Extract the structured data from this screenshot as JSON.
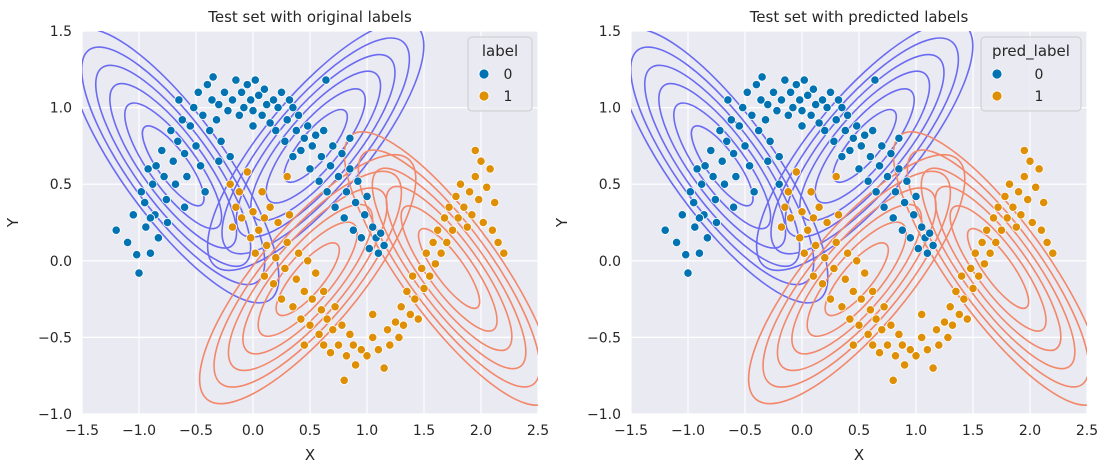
{
  "colors": {
    "class0": "#0173b2",
    "class1": "#de8f05",
    "contour0": "#6b6bf2",
    "contour1": "#f2876a",
    "axes_bg": "#eaeaf2",
    "grid": "#ffffff"
  },
  "chart_data": [
    {
      "type": "scatter",
      "title": "Test set with original labels",
      "xlabel": "X",
      "ylabel": "Y",
      "xlim": [
        -1.5,
        2.5
      ],
      "ylim": [
        -1.0,
        1.5
      ],
      "xticks": [
        "−1.5",
        "−1.0",
        "−0.5",
        "0.0",
        "0.5",
        "1.0",
        "1.5",
        "2.0",
        "2.5"
      ],
      "yticks": [
        "−1.0",
        "−0.5",
        "0.0",
        "0.5",
        "1.0",
        "1.5"
      ],
      "grid": true,
      "legend": {
        "title": "label",
        "placement": "top-right",
        "entries": [
          "0",
          "1"
        ]
      }
    },
    {
      "type": "scatter",
      "title": "Test set with predicted labels",
      "xlabel": "X",
      "ylabel": "Y",
      "xlim": [
        -1.5,
        2.5
      ],
      "ylim": [
        -1.0,
        1.5
      ],
      "xticks": [
        "−1.5",
        "−1.0",
        "−0.5",
        "0.0",
        "0.5",
        "1.0",
        "1.5",
        "2.0",
        "2.5"
      ],
      "yticks": [
        "−1.0",
        "−0.5",
        "0.0",
        "0.5",
        "1.0",
        "1.5"
      ],
      "grid": true,
      "legend": {
        "title": "pred_label",
        "placement": "top-right",
        "entries": [
          "0",
          "1"
        ]
      }
    }
  ],
  "series": [
    {
      "label": "0",
      "points": [
        [
          -1.2,
          0.2
        ],
        [
          -1.1,
          0.12
        ],
        [
          -1.05,
          0.3
        ],
        [
          -1.02,
          0.04
        ],
        [
          -1.0,
          -0.08
        ],
        [
          -0.98,
          0.45
        ],
        [
          -0.95,
          0.38
        ],
        [
          -0.94,
          0.22
        ],
        [
          -0.92,
          0.6
        ],
        [
          -0.9,
          0.05
        ],
        [
          -0.88,
          0.5
        ],
        [
          -0.86,
          0.3
        ],
        [
          -0.85,
          0.62
        ],
        [
          -0.83,
          0.15
        ],
        [
          -0.8,
          0.72
        ],
        [
          -0.78,
          0.55
        ],
        [
          -0.76,
          0.4
        ],
        [
          -0.75,
          0.25
        ],
        [
          -0.72,
          0.85
        ],
        [
          -0.7,
          0.65
        ],
        [
          -0.68,
          0.5
        ],
        [
          -0.66,
          0.78
        ],
        [
          -0.65,
          1.05
        ],
        [
          -0.62,
          0.92
        ],
        [
          -0.6,
          0.7
        ],
        [
          -0.58,
          0.55
        ],
        [
          -0.55,
          0.88
        ],
        [
          -0.52,
          1.0
        ],
        [
          -0.5,
          0.75
        ],
        [
          -0.48,
          1.1
        ],
        [
          -0.46,
          0.62
        ],
        [
          -0.44,
          0.95
        ],
        [
          -0.42,
          0.45
        ],
        [
          -0.4,
          1.15
        ],
        [
          -0.38,
          0.85
        ],
        [
          -0.36,
          1.05
        ],
        [
          -0.35,
          1.2
        ],
        [
          -0.32,
          0.92
        ],
        [
          -0.3,
          1.02
        ],
        [
          -0.28,
          0.78
        ],
        [
          -0.25,
          1.1
        ],
        [
          -0.22,
          0.98
        ],
        [
          -0.2,
          0.68
        ],
        [
          -0.18,
          1.05
        ],
        [
          -0.15,
          1.18
        ],
        [
          -0.12,
          0.95
        ],
        [
          -0.1,
          1.1
        ],
        [
          -0.08,
          1.0
        ],
        [
          -0.05,
          1.15
        ],
        [
          -0.02,
          1.05
        ],
        [
          0.0,
          0.98
        ],
        [
          0.02,
          1.18
        ],
        [
          0.05,
          1.08
        ],
        [
          0.08,
          0.95
        ],
        [
          0.1,
          1.12
        ],
        [
          0.12,
          1.02
        ],
        [
          0.15,
          0.9
        ],
        [
          0.18,
          1.05
        ],
        [
          0.2,
          0.85
        ],
        [
          0.22,
          1.0
        ],
        [
          0.25,
          1.1
        ],
        [
          0.28,
          0.78
        ],
        [
          0.3,
          0.92
        ],
        [
          0.32,
          1.05
        ],
        [
          0.35,
          0.68
        ],
        [
          0.38,
          0.85
        ],
        [
          0.4,
          0.95
        ],
        [
          0.42,
          0.72
        ],
        [
          0.45,
          0.8
        ],
        [
          0.48,
          0.88
        ],
        [
          0.5,
          0.6
        ],
        [
          0.52,
          0.75
        ],
        [
          0.55,
          0.82
        ],
        [
          0.58,
          0.52
        ],
        [
          0.6,
          0.68
        ],
        [
          0.62,
          0.85
        ],
        [
          0.64,
          1.18
        ],
        [
          0.65,
          0.45
        ],
        [
          0.68,
          0.62
        ],
        [
          0.7,
          0.75
        ],
        [
          0.72,
          0.35
        ],
        [
          0.75,
          0.55
        ],
        [
          0.78,
          0.7
        ],
        [
          0.8,
          0.28
        ],
        [
          0.82,
          0.45
        ],
        [
          0.85,
          0.6
        ],
        [
          0.88,
          0.2
        ],
        [
          0.9,
          0.38
        ],
        [
          0.92,
          0.52
        ],
        [
          0.95,
          0.15
        ],
        [
          0.98,
          0.3
        ],
        [
          1.0,
          0.42
        ],
        [
          1.02,
          0.08
        ],
        [
          1.05,
          0.22
        ],
        [
          1.08,
          0.15
        ],
        [
          1.1,
          0.05
        ],
        [
          1.12,
          0.18
        ],
        [
          1.15,
          0.1
        ],
        [
          0.85,
          0.8
        ],
        [
          0.35,
          1.0
        ],
        [
          -0.6,
          0.35
        ],
        [
          -0.9,
          0.28
        ],
        [
          -0.3,
          0.65
        ],
        [
          0.0,
          0.88
        ]
      ]
    },
    {
      "label": "1",
      "points": [
        [
          -0.2,
          0.5
        ],
        [
          -0.18,
          0.22
        ],
        [
          -0.15,
          0.35
        ],
        [
          -0.12,
          0.45
        ],
        [
          -0.1,
          0.28
        ],
        [
          -0.05,
          0.58
        ],
        [
          -0.02,
          0.15
        ],
        [
          0.0,
          0.32
        ],
        [
          0.02,
          0.05
        ],
        [
          0.05,
          0.2
        ],
        [
          0.08,
          0.45
        ],
        [
          0.1,
          -0.1
        ],
        [
          0.12,
          0.1
        ],
        [
          0.15,
          0.35
        ],
        [
          0.18,
          -0.15
        ],
        [
          0.2,
          0.02
        ],
        [
          0.22,
          0.25
        ],
        [
          0.25,
          -0.25
        ],
        [
          0.28,
          -0.05
        ],
        [
          0.3,
          0.12
        ],
        [
          0.32,
          0.3
        ],
        [
          0.35,
          -0.3
        ],
        [
          0.38,
          -0.12
        ],
        [
          0.4,
          0.05
        ],
        [
          0.42,
          -0.38
        ],
        [
          0.45,
          -0.2
        ],
        [
          0.48,
          0.0
        ],
        [
          0.5,
          -0.42
        ],
        [
          0.52,
          -0.25
        ],
        [
          0.55,
          -0.08
        ],
        [
          0.58,
          -0.48
        ],
        [
          0.6,
          -0.32
        ],
        [
          0.62,
          -0.55
        ],
        [
          0.65,
          -0.38
        ],
        [
          0.68,
          -0.6
        ],
        [
          0.7,
          -0.45
        ],
        [
          0.72,
          -0.3
        ],
        [
          0.75,
          -0.55
        ],
        [
          0.78,
          -0.42
        ],
        [
          0.8,
          -0.78
        ],
        [
          0.82,
          -0.62
        ],
        [
          0.85,
          -0.48
        ],
        [
          0.88,
          -0.55
        ],
        [
          0.9,
          -0.68
        ],
        [
          0.95,
          -0.58
        ],
        [
          1.0,
          -0.62
        ],
        [
          1.05,
          -0.5
        ],
        [
          1.1,
          -0.58
        ],
        [
          1.15,
          -0.7
        ],
        [
          1.18,
          -0.45
        ],
        [
          1.2,
          -0.55
        ],
        [
          1.25,
          -0.4
        ],
        [
          1.28,
          -0.5
        ],
        [
          1.3,
          -0.3
        ],
        [
          1.32,
          -0.42
        ],
        [
          1.35,
          -0.2
        ],
        [
          1.38,
          -0.35
        ],
        [
          1.4,
          -0.1
        ],
        [
          1.42,
          -0.25
        ],
        [
          1.45,
          -0.38
        ],
        [
          1.48,
          -0.05
        ],
        [
          1.5,
          -0.18
        ],
        [
          1.52,
          0.05
        ],
        [
          1.55,
          -0.1
        ],
        [
          1.58,
          0.12
        ],
        [
          1.6,
          -0.02
        ],
        [
          1.62,
          0.2
        ],
        [
          1.65,
          0.05
        ],
        [
          1.68,
          0.28
        ],
        [
          1.7,
          0.12
        ],
        [
          1.72,
          0.35
        ],
        [
          1.75,
          0.2
        ],
        [
          1.78,
          0.42
        ],
        [
          1.8,
          0.28
        ],
        [
          1.82,
          0.5
        ],
        [
          1.85,
          0.35
        ],
        [
          1.88,
          0.22
        ],
        [
          1.9,
          0.45
        ],
        [
          1.92,
          0.3
        ],
        [
          1.95,
          0.55
        ],
        [
          1.98,
          0.4
        ],
        [
          2.0,
          0.65
        ],
        [
          2.02,
          0.25
        ],
        [
          2.05,
          0.48
        ],
        [
          2.08,
          0.6
        ],
        [
          2.1,
          0.2
        ],
        [
          2.12,
          0.38
        ],
        [
          2.15,
          0.12
        ],
        [
          2.2,
          0.05
        ],
        [
          0.3,
          0.55
        ],
        [
          0.1,
          0.28
        ],
        [
          1.95,
          0.72
        ],
        [
          0.45,
          -0.55
        ],
        [
          1.05,
          -0.35
        ],
        [
          0.62,
          -0.2
        ]
      ]
    }
  ],
  "prediction_overrides": [
    [
      -0.2,
      0.5,
      "0"
    ]
  ]
}
